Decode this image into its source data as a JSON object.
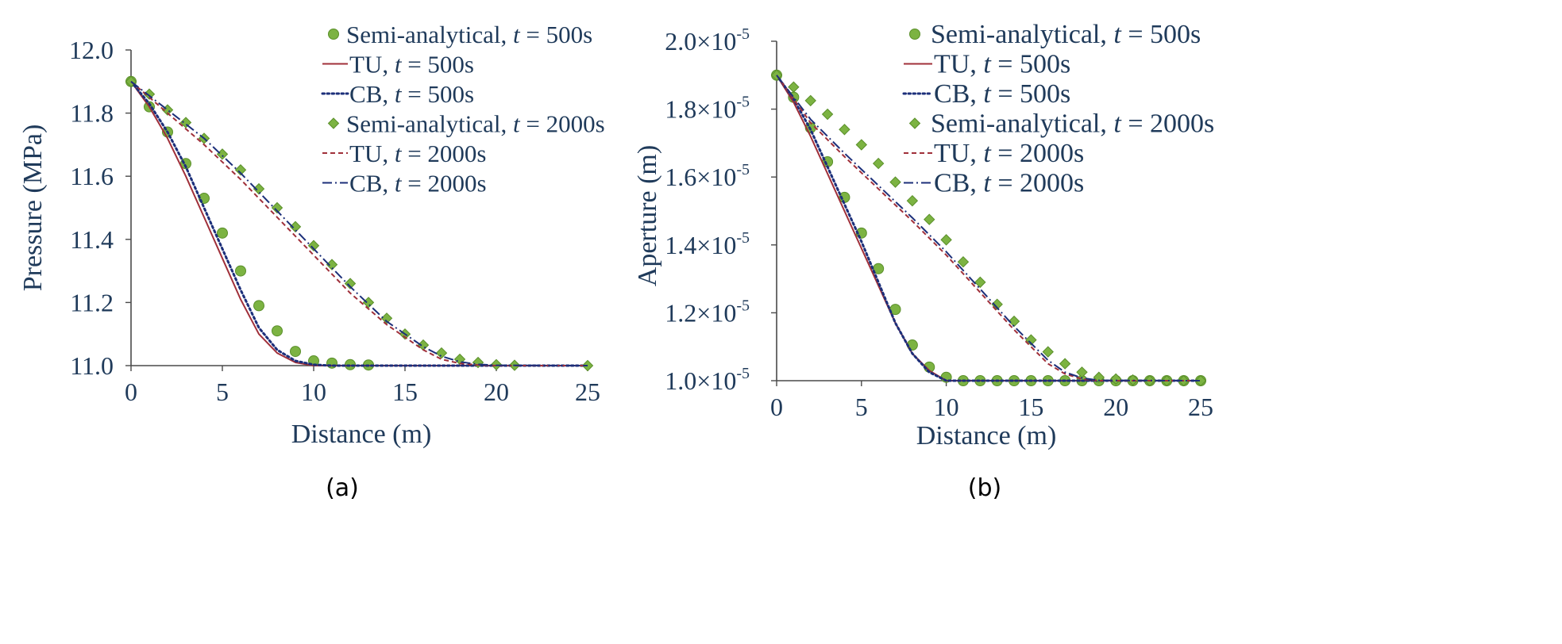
{
  "chart_data": [
    {
      "type": "line",
      "panel_label": "(a)",
      "xlabel": "Distance (m)",
      "ylabel": "Pressure (MPa)",
      "xlim": [
        0,
        25
      ],
      "ylim": [
        11.0,
        12.0
      ],
      "xticks": [
        "0",
        "5",
        "10",
        "15",
        "20",
        "25"
      ],
      "yticks": [
        "11.0",
        "11.2",
        "11.4",
        "11.6",
        "11.8",
        "12.0"
      ],
      "grid": false,
      "legend_position": "top-right",
      "series": [
        {
          "name": "Semi-analytical, t = 500s",
          "style": "circle-markers",
          "color": "#7cb342",
          "x": [
            0,
            1,
            2,
            3,
            4,
            5,
            6,
            7,
            8,
            9,
            10,
            11,
            12,
            13
          ],
          "y": [
            11.9,
            11.82,
            11.74,
            11.64,
            11.53,
            11.42,
            11.3,
            11.19,
            11.11,
            11.045,
            11.015,
            11.008,
            11.003,
            11.002
          ]
        },
        {
          "name": "TU, t = 500s",
          "style": "solid",
          "color": "#a0303a",
          "x": [
            0,
            1,
            2,
            3,
            4,
            5,
            6,
            7,
            8,
            9,
            10,
            11,
            12,
            25
          ],
          "y": [
            11.9,
            11.82,
            11.72,
            11.6,
            11.47,
            11.34,
            11.21,
            11.1,
            11.04,
            11.01,
            11.0,
            11.0,
            11.0,
            11.0
          ]
        },
        {
          "name": "CB, t = 500s",
          "style": "dotted",
          "color": "#1c2f7a",
          "x": [
            0,
            1,
            2,
            3,
            4,
            5,
            6,
            7,
            8,
            9,
            10,
            11,
            25
          ],
          "y": [
            11.9,
            11.83,
            11.74,
            11.63,
            11.5,
            11.37,
            11.24,
            11.12,
            11.05,
            11.015,
            11.003,
            11.0,
            11.0
          ]
        },
        {
          "name": "Semi-analytical, t = 2000s",
          "style": "diamond-markers",
          "color": "#7cb342",
          "x": [
            0,
            1,
            2,
            3,
            4,
            5,
            6,
            7,
            8,
            9,
            10,
            11,
            12,
            13,
            14,
            15,
            16,
            17,
            18,
            19,
            20,
            21,
            25
          ],
          "y": [
            11.9,
            11.86,
            11.81,
            11.77,
            11.72,
            11.67,
            11.62,
            11.56,
            11.5,
            11.44,
            11.38,
            11.32,
            11.26,
            11.2,
            11.15,
            11.1,
            11.065,
            11.04,
            11.02,
            11.01,
            11.003,
            11.001,
            11.0
          ]
        },
        {
          "name": "TU, t = 2000s",
          "style": "dashed",
          "color": "#a0303a",
          "x": [
            0,
            2,
            4,
            6,
            8,
            10,
            12,
            14,
            16,
            17,
            18,
            19,
            20,
            25
          ],
          "y": [
            11.9,
            11.8,
            11.7,
            11.59,
            11.47,
            11.35,
            11.23,
            11.13,
            11.05,
            11.02,
            11.007,
            11.002,
            11.0,
            11.0
          ]
        },
        {
          "name": "CB, t = 2000s",
          "style": "dash-dot",
          "color": "#1c2f7a",
          "x": [
            0,
            2,
            4,
            6,
            8,
            10,
            12,
            14,
            16,
            17,
            18,
            19,
            20,
            25
          ],
          "y": [
            11.9,
            11.81,
            11.72,
            11.61,
            11.49,
            11.37,
            11.25,
            11.14,
            11.06,
            11.03,
            11.012,
            11.004,
            11.001,
            11.0
          ]
        }
      ]
    },
    {
      "type": "line",
      "panel_label": "(b)",
      "xlabel": "Distance (m)",
      "ylabel": "Aperture (m)",
      "xlim": [
        0,
        25
      ],
      "ylim": [
        1e-05,
        2e-05
      ],
      "xticks": [
        "0",
        "5",
        "10",
        "15",
        "20",
        "25"
      ],
      "yticks": [
        {
          "mantissa": "1.0×10",
          "exp": "-5"
        },
        {
          "mantissa": "1.2×10",
          "exp": "-5"
        },
        {
          "mantissa": "1.4×10",
          "exp": "-5"
        },
        {
          "mantissa": "1.6×10",
          "exp": "-5"
        },
        {
          "mantissa": "1.8×10",
          "exp": "-5"
        },
        {
          "mantissa": "2.0×10",
          "exp": "-5"
        }
      ],
      "grid": false,
      "legend_position": "top-right",
      "series": [
        {
          "name": "Semi-analytical, t = 500s",
          "style": "circle-markers",
          "color": "#7cb342",
          "x": [
            0,
            1,
            2,
            3,
            4,
            5,
            6,
            7,
            8,
            9,
            10,
            11,
            12,
            13,
            14,
            15,
            16,
            17,
            18,
            19,
            20,
            21,
            22,
            23,
            24,
            25
          ],
          "y": [
            1.9e-05,
            1.835e-05,
            1.745e-05,
            1.645e-05,
            1.54e-05,
            1.435e-05,
            1.33e-05,
            1.21e-05,
            1.105e-05,
            1.04e-05,
            1.01e-05,
            1e-05,
            1e-05,
            1e-05,
            1e-05,
            1e-05,
            1e-05,
            1e-05,
            1e-05,
            1e-05,
            1e-05,
            1e-05,
            1e-05,
            1e-05,
            1e-05,
            1e-05
          ]
        },
        {
          "name": "TU, t = 500s",
          "style": "solid",
          "color": "#a0303a",
          "x": [
            0,
            1,
            2,
            3,
            4,
            5,
            6,
            7,
            8,
            9,
            10,
            25
          ],
          "y": [
            1.9e-05,
            1.82e-05,
            1.72e-05,
            1.61e-05,
            1.5e-05,
            1.39e-05,
            1.28e-05,
            1.17e-05,
            1.08e-05,
            1.03e-05,
            1e-05,
            1e-05
          ]
        },
        {
          "name": "CB, t = 500s",
          "style": "dotted",
          "color": "#1c2f7a",
          "x": [
            0,
            1,
            2,
            3,
            4,
            5,
            6,
            7,
            8,
            9,
            10,
            25
          ],
          "y": [
            1.9e-05,
            1.83e-05,
            1.74e-05,
            1.63e-05,
            1.52e-05,
            1.41e-05,
            1.29e-05,
            1.17e-05,
            1.08e-05,
            1.025e-05,
            1e-05,
            1e-05
          ]
        },
        {
          "name": "Semi-analytical, t = 2000s",
          "style": "diamond-markers",
          "color": "#7cb342",
          "x": [
            0,
            1,
            2,
            3,
            4,
            5,
            6,
            7,
            8,
            9,
            10,
            11,
            12,
            13,
            14,
            15,
            16,
            17,
            18,
            19,
            20,
            21,
            22,
            23,
            24,
            25
          ],
          "y": [
            1.9e-05,
            1.865e-05,
            1.825e-05,
            1.785e-05,
            1.74e-05,
            1.695e-05,
            1.64e-05,
            1.585e-05,
            1.53e-05,
            1.475e-05,
            1.415e-05,
            1.35e-05,
            1.29e-05,
            1.225e-05,
            1.175e-05,
            1.12e-05,
            1.085e-05,
            1.05e-05,
            1.025e-05,
            1.01e-05,
            1.005e-05,
            1.002e-05,
            1e-05,
            1e-05,
            1e-05,
            1e-05
          ]
        },
        {
          "name": "TU, t = 2000s",
          "style": "dashed",
          "color": "#a0303a",
          "x": [
            0,
            2,
            4,
            6,
            8,
            10,
            12,
            14,
            16,
            17,
            18,
            19,
            25
          ],
          "y": [
            1.9e-05,
            1.76e-05,
            1.66e-05,
            1.565e-05,
            1.47e-05,
            1.37e-05,
            1.26e-05,
            1.15e-05,
            1.05e-05,
            1.02e-05,
            1.005e-05,
            1e-05,
            1e-05
          ]
        },
        {
          "name": "CB, t = 2000s",
          "style": "dash-dot",
          "color": "#1c2f7a",
          "x": [
            0,
            2,
            4,
            6,
            8,
            10,
            12,
            14,
            16,
            17,
            18,
            19,
            25
          ],
          "y": [
            1.9e-05,
            1.77e-05,
            1.67e-05,
            1.575e-05,
            1.48e-05,
            1.38e-05,
            1.27e-05,
            1.16e-05,
            1.06e-05,
            1.025e-05,
            1.008e-05,
            1.001e-05,
            1e-05
          ]
        }
      ]
    }
  ]
}
